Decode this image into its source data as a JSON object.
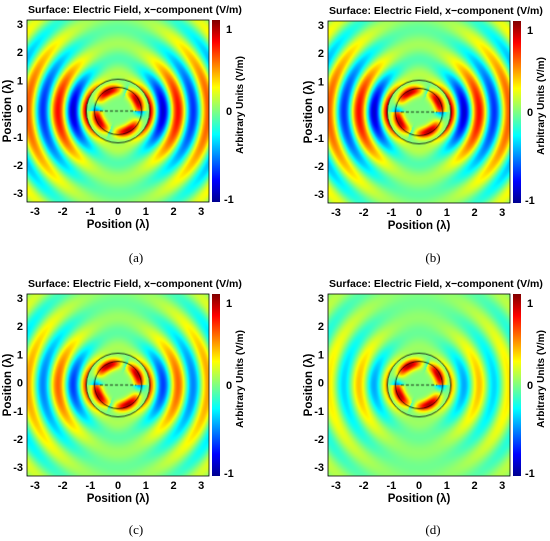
{
  "panels": [
    {
      "title": "Surface: Electric Field, x−component (V/m)",
      "xlabel": "Position (λ)",
      "ylabel": "Position (λ)",
      "colorbar_label": "Arbitrary Units (V/m)",
      "caption": "(a)",
      "wave_strength": 1.0
    },
    {
      "title": "Surface: Electric Field, x−component (V/m)",
      "xlabel": "Position (λ)",
      "ylabel": "Position (λ)",
      "colorbar_label": "Arbitrary Units (V/m)",
      "caption": "(b)",
      "wave_strength": 1.0
    },
    {
      "title": "Surface: Electric Field, x−component (V/m)",
      "xlabel": "Position (λ)",
      "ylabel": "Position (λ)",
      "colorbar_label": "Arbitrary Units (V/m)",
      "caption": "(c)",
      "wave_strength": 0.75
    },
    {
      "title": "Surface: Electric Field, x−component (V/m)",
      "xlabel": "Position (λ)",
      "ylabel": "Position (λ)",
      "colorbar_label": "Arbitrary Units (V/m)",
      "caption": "(d)",
      "wave_strength": 0.5
    }
  ],
  "axis": {
    "x_ticks": [
      "-3",
      "-2",
      "-1",
      "0",
      "1",
      "2",
      "3"
    ],
    "y_ticks": [
      "3",
      "2",
      "1",
      "0",
      "-1",
      "-2",
      "-3"
    ],
    "range": [
      -3,
      3
    ]
  },
  "colorbar": {
    "ticks": [
      "1",
      "0",
      "-1"
    ],
    "range": [
      -1,
      1
    ],
    "colormap": "jet"
  },
  "colors": {
    "background": "#80ff80",
    "max": "#800000",
    "min": "#00008f"
  }
}
